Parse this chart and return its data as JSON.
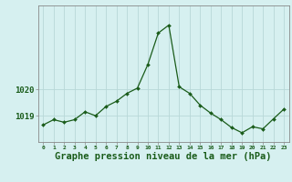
{
  "x": [
    0,
    1,
    2,
    3,
    4,
    5,
    6,
    7,
    8,
    9,
    10,
    11,
    12,
    13,
    14,
    15,
    16,
    17,
    18,
    19,
    20,
    21,
    22,
    23
  ],
  "y": [
    1018.65,
    1018.85,
    1018.75,
    1018.85,
    1019.15,
    1019.0,
    1019.35,
    1019.55,
    1019.85,
    1020.05,
    1020.95,
    1022.15,
    1022.45,
    1020.1,
    1019.85,
    1019.4,
    1019.1,
    1018.85,
    1018.55,
    1018.35,
    1018.58,
    1018.5,
    1018.88,
    1019.25
  ],
  "line_color": "#1a5c1a",
  "marker": "D",
  "marker_size": 2.0,
  "bg_color": "#d6f0f0",
  "grid_color": "#b8d8d8",
  "xlabel": "Graphe pression niveau de la mer (hPa)",
  "xlabel_fontsize": 7.5,
  "xlabel_color": "#1a5c1a",
  "tick_label_color": "#1a5c1a",
  "ytick_labels": [
    1019,
    1020
  ],
  "ylim": [
    1018.0,
    1023.2
  ],
  "xlim": [
    -0.5,
    23.5
  ],
  "xtick_labels": [
    "0",
    "1",
    "2",
    "3",
    "4",
    "5",
    "6",
    "7",
    "8",
    "9",
    "10",
    "11",
    "12",
    "13",
    "14",
    "15",
    "16",
    "17",
    "18",
    "19",
    "20",
    "21",
    "22",
    "23"
  ],
  "axis_color": "#888888",
  "line_width": 0.9
}
